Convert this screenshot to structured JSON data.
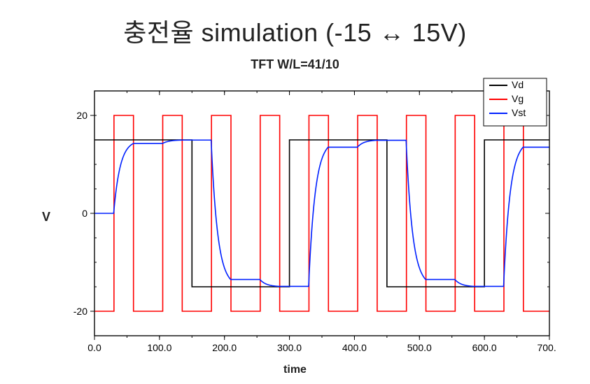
{
  "title": "충전율 simulation (-15 ↔ 15V)",
  "subtitle": "TFT W/L=41/10",
  "chart": {
    "type": "line",
    "background_color": "#ffffff",
    "plot_border_color": "#000000",
    "tick_color": "#000000",
    "title_fontsize": 36,
    "subtitle_fontsize": 18,
    "label_fontsize": 16,
    "tick_fontsize": 14,
    "xlabel": "time",
    "ylabel": "V",
    "xlim": [
      0,
      700
    ],
    "ylim": [
      -25,
      25
    ],
    "xtick_step": 100,
    "ytick_step": 20,
    "xtick_decimals": 1,
    "ytick_decimals": 0,
    "xticks_shown": [
      0,
      100,
      200,
      300,
      400,
      500,
      600,
      700
    ],
    "yticks_shown": [
      -20,
      0,
      20
    ],
    "line_width": 1.6,
    "legend": {
      "position": "top-right",
      "border_color": "#000000",
      "bg_color": "#ffffff",
      "font_size": 14,
      "items": [
        {
          "label": "Vd",
          "color": "#000000"
        },
        {
          "label": "Vg",
          "color": "#ff0000"
        },
        {
          "label": "Vst",
          "color": "#0020ff"
        }
      ]
    },
    "series": {
      "Vd": {
        "color": "#000000",
        "width": 1.6,
        "type": "square",
        "period": 150,
        "high": 15,
        "low": -15,
        "start_at": 0,
        "start_level": "high",
        "switch_offsets": [
          0,
          150
        ]
      },
      "Vg": {
        "color": "#ff0000",
        "width": 1.6,
        "type": "square",
        "period": 150,
        "high": 20,
        "low": -20,
        "start_at": 30,
        "start_level": "low",
        "pulse_width": 30,
        "gap": 45
      },
      "Vst": {
        "color": "#0020ff",
        "width": 1.6,
        "type": "rc-follow",
        "targets_from": "Vd",
        "gate_from": "Vg",
        "tau_rise": 10,
        "tau_fall": 10,
        "initial": 0
      }
    }
  }
}
